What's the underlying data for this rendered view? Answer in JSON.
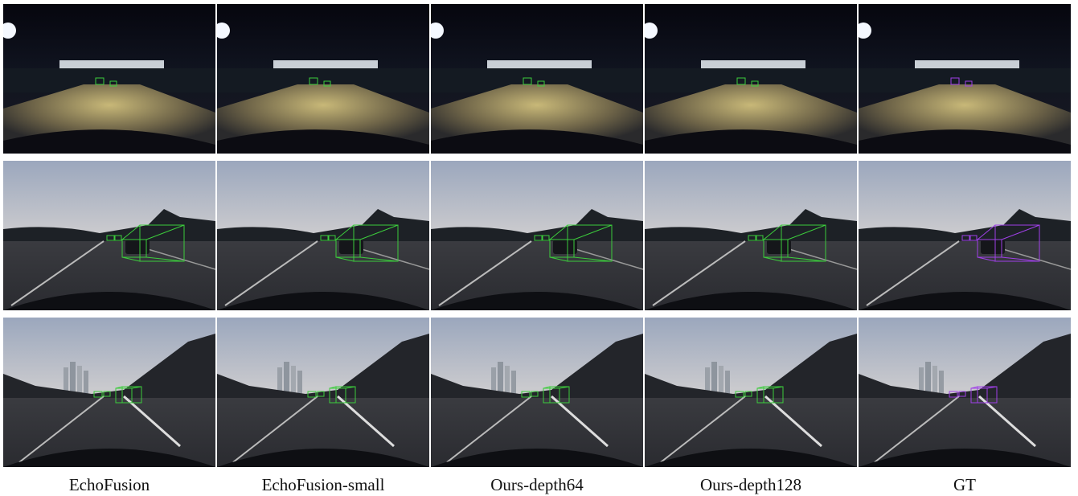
{
  "columns": [
    "EchoFusion",
    "EchoFusion-small",
    "Ours-depth64",
    "Ours-depth128",
    "GT"
  ]
}
